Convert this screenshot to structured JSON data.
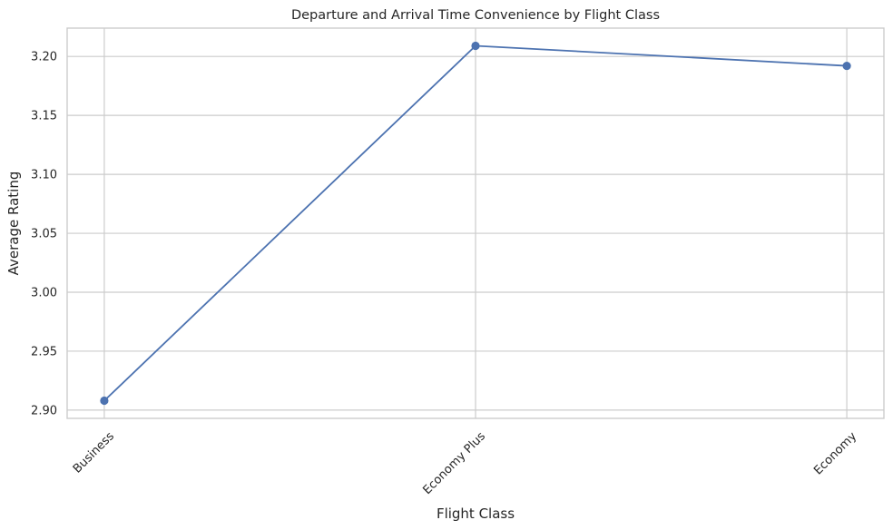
{
  "chart_data": {
    "type": "line",
    "title": "Departure and Arrival Time Convenience by Flight Class",
    "xlabel": "Flight Class",
    "ylabel": "Average Rating",
    "categories": [
      "Business",
      "Economy Plus",
      "Economy"
    ],
    "series": [
      {
        "values": [
          2.908,
          3.209,
          3.192
        ],
        "color": "#4c72b0",
        "marker": "circle"
      }
    ],
    "ylim": [
      2.893,
      3.224
    ],
    "yticks": [
      "2.90",
      "2.95",
      "3.00",
      "3.05",
      "3.10",
      "3.15",
      "3.20"
    ],
    "ytick_values": [
      2.9,
      2.95,
      3.0,
      3.05,
      3.1,
      3.15,
      3.2
    ],
    "x_tick_rotation_deg": 45,
    "grid": true,
    "legend": false
  }
}
